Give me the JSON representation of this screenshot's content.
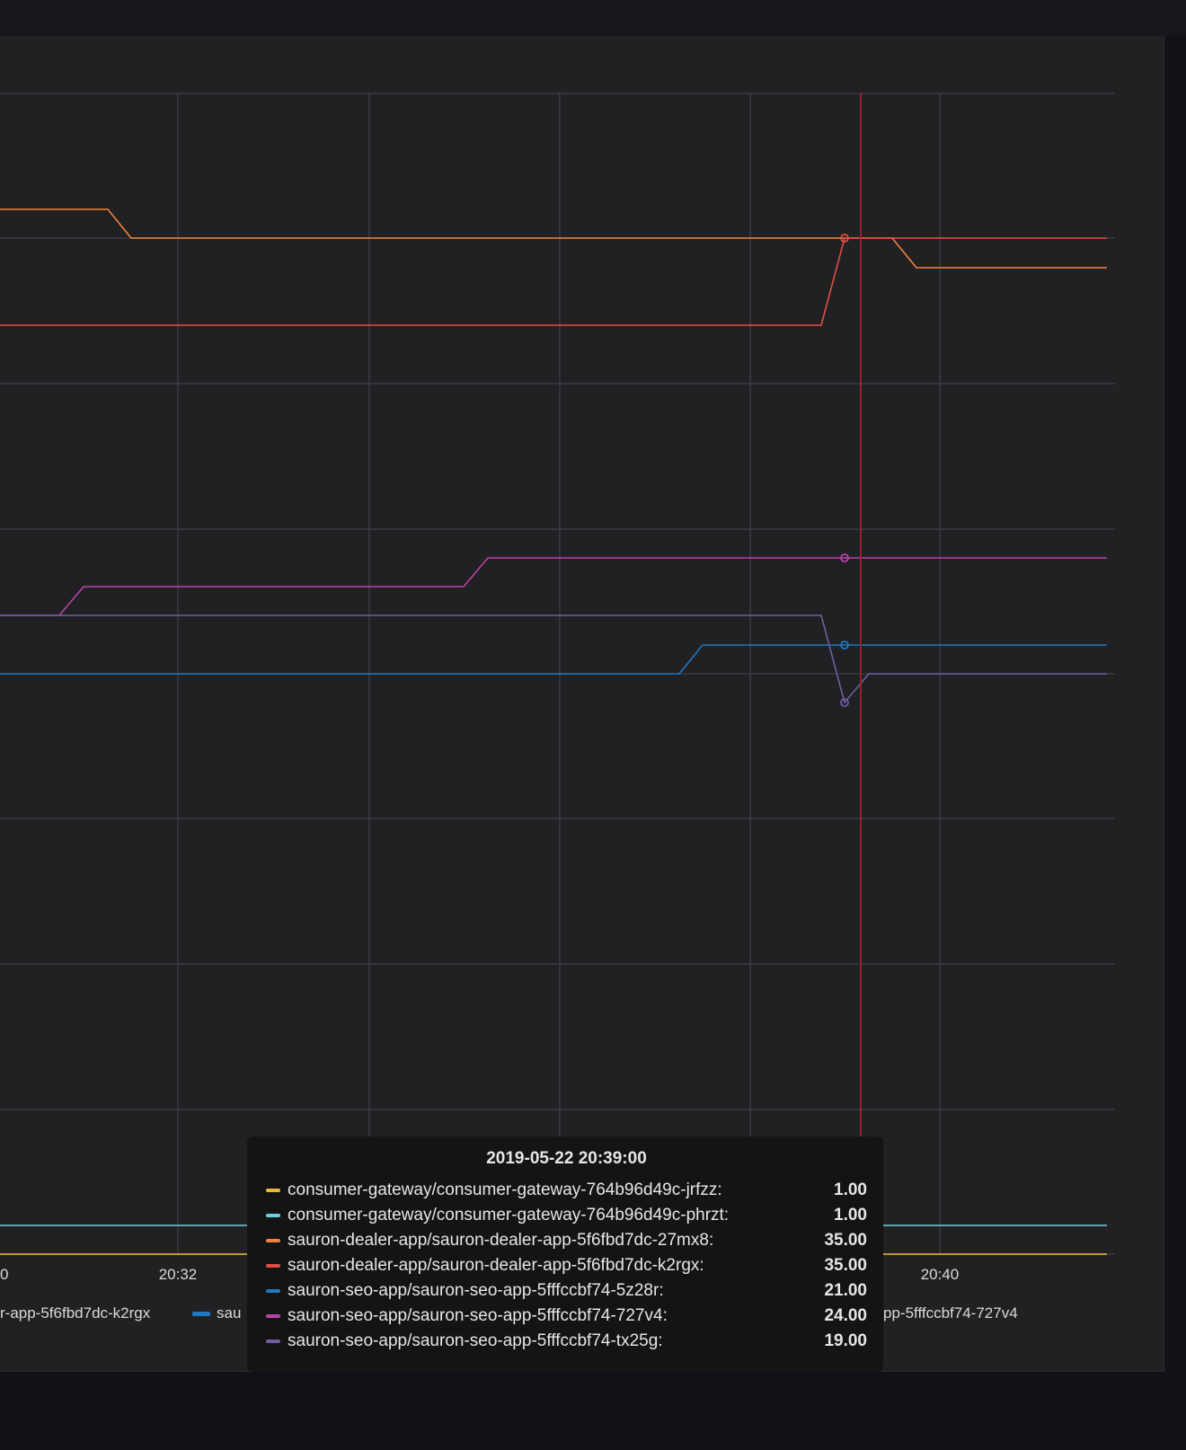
{
  "chart_data": {
    "type": "line",
    "x_axis": {
      "ticks": [
        "20:32",
        "20:40"
      ],
      "partial_left_tick": "0"
    },
    "series": [
      {
        "name": "consumer-gateway/consumer-gateway-764b96d49c-jrfzz",
        "color": "#eab839"
      },
      {
        "name": "consumer-gateway/consumer-gateway-764b96d49c-phrzt",
        "color": "#6ed0e0"
      },
      {
        "name": "sauron-dealer-app/sauron-dealer-app-5f6fbd7dc-27mx8",
        "color": "#ef843c"
      },
      {
        "name": "sauron-dealer-app/sauron-dealer-app-5f6fbd7dc-k2rgx",
        "color": "#e24d42"
      },
      {
        "name": "sauron-seo-app/sauron-seo-app-5fffccbf74-5z28r",
        "color": "#1f78c1"
      },
      {
        "name": "sauron-seo-app/sauron-seo-app-5fffccbf74-727v4",
        "color": "#ba43a9"
      },
      {
        "name": "sauron-seo-app/sauron-seo-app-5fffccbf74-tx25g",
        "color": "#705da0"
      }
    ],
    "hover_time": "20:39:00"
  },
  "legend": {
    "left_fragment": "r-app-5f6fbd7dc-k2rgx",
    "middle_fragment": "sau",
    "right_fragment": "pp-5fffccbf74-727v4"
  },
  "tooltip": {
    "title": "2019-05-22 20:39:00",
    "rows": [
      {
        "name": "consumer-gateway/consumer-gateway-764b96d49c-jrfzz:",
        "value": "1.00",
        "color": "#eab839"
      },
      {
        "name": "consumer-gateway/consumer-gateway-764b96d49c-phrzt:",
        "value": "1.00",
        "color": "#6ed0e0"
      },
      {
        "name": "sauron-dealer-app/sauron-dealer-app-5f6fbd7dc-27mx8:",
        "value": "35.00",
        "color": "#ef843c"
      },
      {
        "name": "sauron-dealer-app/sauron-dealer-app-5f6fbd7dc-k2rgx:",
        "value": "35.00",
        "color": "#e24d42"
      },
      {
        "name": "sauron-seo-app/sauron-seo-app-5fffccbf74-5z28r:",
        "value": "21.00",
        "color": "#1f78c1"
      },
      {
        "name": "sauron-seo-app/sauron-seo-app-5fffccbf74-727v4:",
        "value": "24.00",
        "color": "#ba43a9"
      },
      {
        "name": "sauron-seo-app/sauron-seo-app-5fffccbf74-tx25g:",
        "value": "19.00",
        "color": "#705da0"
      }
    ]
  }
}
